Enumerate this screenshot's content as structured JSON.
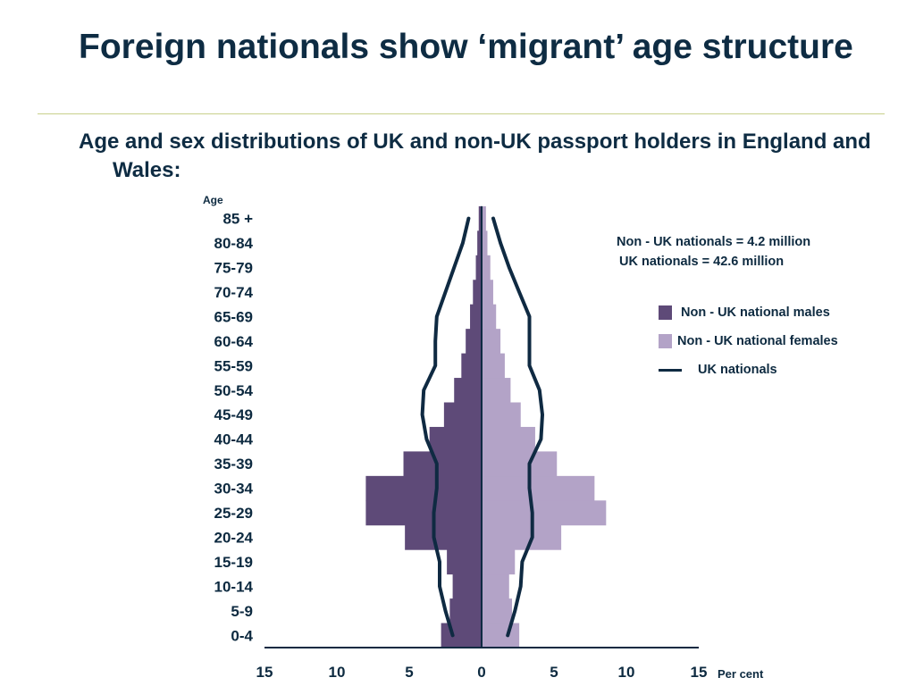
{
  "slide": {
    "title": "Foreign nationals show ‘migrant’ age structure",
    "subtitle": "Age and sex distributions of UK and non-UK passport holders in England and Wales:"
  },
  "info": {
    "non_uk_total": "Non - UK nationals = 4.2 million",
    "uk_total": "UK nationals = 42.6 million"
  },
  "colors": {
    "males": "#5e4a78",
    "females": "#b3a3c7",
    "uk_line": "#0f2a42",
    "text": "#0d2a40"
  },
  "chart_data": {
    "type": "bar",
    "orientation": "horizontal-pyramid",
    "ylabel": "Age",
    "xlabel": "Per cent",
    "xlim": [
      -15,
      15
    ],
    "x_ticks": [
      -15,
      -10,
      -5,
      0,
      5,
      10,
      15
    ],
    "x_tick_labels": [
      "15",
      "10",
      "5",
      "0",
      "5",
      "10",
      "15"
    ],
    "categories": [
      "0-4",
      "5-9",
      "10-14",
      "15-19",
      "20-24",
      "25-29",
      "30-34",
      "35-39",
      "40-44",
      "45-49",
      "50-54",
      "55-59",
      "60-64",
      "65-69",
      "70-74",
      "75-79",
      "80-84",
      "85 +"
    ],
    "series": [
      {
        "name": "Non - UK national males",
        "kind": "bars",
        "side": "left",
        "values": [
          2.8,
          2.2,
          2.0,
          2.4,
          5.3,
          8.0,
          8.0,
          5.4,
          3.6,
          2.6,
          1.9,
          1.4,
          1.1,
          0.8,
          0.6,
          0.4,
          0.3,
          0.2
        ]
      },
      {
        "name": "Non - UK national females",
        "kind": "bars",
        "side": "right",
        "values": [
          2.6,
          2.1,
          1.9,
          2.3,
          5.5,
          8.6,
          7.8,
          5.2,
          3.7,
          2.7,
          2.0,
          1.6,
          1.3,
          1.0,
          0.8,
          0.6,
          0.4,
          0.3
        ]
      },
      {
        "name": "UK nationals",
        "kind": "outline",
        "side": "left",
        "values": [
          2.0,
          2.5,
          2.9,
          2.9,
          3.3,
          3.3,
          3.1,
          3.1,
          3.8,
          4.1,
          4.0,
          3.2,
          3.2,
          3.1,
          2.5,
          1.9,
          1.3,
          0.9
        ]
      },
      {
        "name": "UK nationals",
        "kind": "outline",
        "side": "right",
        "values": [
          1.8,
          2.3,
          2.7,
          2.8,
          3.5,
          3.5,
          3.3,
          3.3,
          4.1,
          4.2,
          4.0,
          3.3,
          3.3,
          3.3,
          2.6,
          1.9,
          1.3,
          0.8
        ]
      }
    ]
  },
  "legend": {
    "males": "Non - UK national males",
    "females": "Non - UK national females",
    "uk": "UK nationals"
  }
}
